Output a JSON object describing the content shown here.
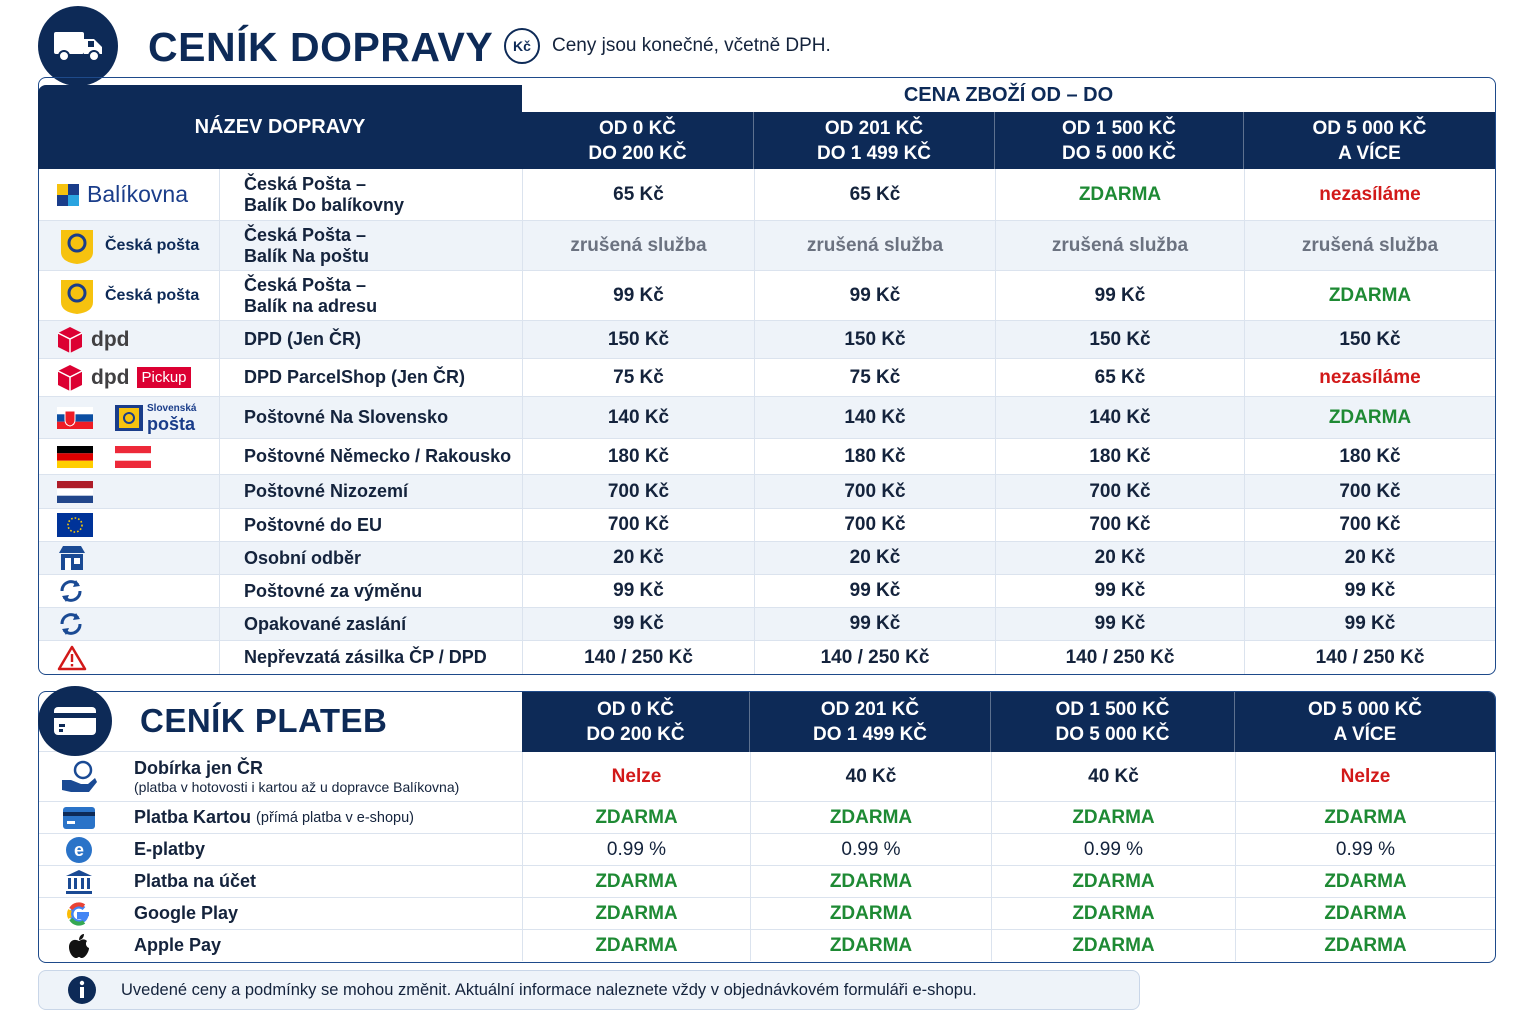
{
  "header": {
    "title": "CENÍK DOPRAVY",
    "currency_badge": "Kč",
    "note": "Ceny jsou konečné, včetně DPH."
  },
  "shipping": {
    "name_header": "NÁZEV DOPRAVY",
    "group_header": "CENA ZBOŽÍ OD – DO",
    "columns": [
      {
        "line1": "OD 0 KČ",
        "line2": "DO 200 KČ"
      },
      {
        "line1": "OD 201 KČ",
        "line2": "DO 1 499 KČ"
      },
      {
        "line1": "OD 1 500 KČ",
        "line2": "DO 5 000 KČ"
      },
      {
        "line1": "OD 5 000 KČ",
        "line2": "A VÍCE"
      }
    ],
    "logos": {
      "balikovna": "Balíkovna",
      "ceska_posta": "Česká pošta",
      "dpd": "dpd",
      "pickup": "Pickup",
      "slovenska_posta_1": "Slovenská",
      "slovenska_posta_2": "pošta"
    },
    "rows": [
      {
        "name1": "Česká Pošta –",
        "name2": "Balík Do balíkovny",
        "v": [
          "65 Kč",
          "65 Kč",
          "ZDARMA",
          "nezasíláme"
        ]
      },
      {
        "name1": "Česká Pošta –",
        "name2": "Balík Na poštu",
        "v": [
          "zrušená služba",
          "zrušená služba",
          "zrušená služba",
          "zrušená služba"
        ]
      },
      {
        "name1": "Česká Pošta –",
        "name2": "Balík na adresu",
        "v": [
          "99 Kč",
          "99 Kč",
          "99 Kč",
          "ZDARMA"
        ]
      },
      {
        "name1": "DPD (Jen ČR)",
        "v": [
          "150 Kč",
          "150 Kč",
          "150 Kč",
          "150 Kč"
        ]
      },
      {
        "name1": "DPD ParcelShop (Jen ČR)",
        "v": [
          "75 Kč",
          "75 Kč",
          "65 Kč",
          "nezasíláme"
        ]
      },
      {
        "name1": "Poštovné Na Slovensko",
        "v": [
          "140 Kč",
          "140 Kč",
          "140 Kč",
          "ZDARMA"
        ]
      },
      {
        "name1": "Poštovné Německo / Rakousko",
        "v": [
          "180 Kč",
          "180 Kč",
          "180 Kč",
          "180 Kč"
        ]
      },
      {
        "name1": "Poštovné Nizozemí",
        "v": [
          "700 Kč",
          "700 Kč",
          "700 Kč",
          "700 Kč"
        ]
      },
      {
        "name1": "Poštovné do EU",
        "v": [
          "700 Kč",
          "700 Kč",
          "700 Kč",
          "700 Kč"
        ]
      },
      {
        "name1": "Osobní odběr",
        "v": [
          "20 Kč",
          "20 Kč",
          "20 Kč",
          "20 Kč"
        ]
      },
      {
        "name1": "Poštovné za výměnu",
        "v": [
          "99 Kč",
          "99 Kč",
          "99 Kč",
          "99 Kč"
        ]
      },
      {
        "name1": "Opakované zaslání",
        "v": [
          "99 Kč",
          "99 Kč",
          "99 Kč",
          "99 Kč"
        ]
      },
      {
        "name1": "Nepřevzatá zásilka ČP / DPD",
        "v": [
          "140 / 250 Kč",
          "140 / 250 Kč",
          "140 / 250 Kč",
          "140 / 250 Kč"
        ]
      }
    ]
  },
  "payments": {
    "title": "CENÍK PLATEB",
    "columns": [
      {
        "line1": "OD 0 KČ",
        "line2": "DO 200 KČ"
      },
      {
        "line1": "OD 201 KČ",
        "line2": "DO 1 499 KČ"
      },
      {
        "line1": "OD 1 500 KČ",
        "line2": "DO 5 000 KČ"
      },
      {
        "line1": "OD 5 000 KČ",
        "line2": "A VÍCE"
      }
    ],
    "rows": [
      {
        "name": "Dobírka jen ČR",
        "sub": "(platba v hotovosti i kartou až u dopravce Balíkovna)",
        "v": [
          "Nelze",
          "40 Kč",
          "40 Kč",
          "Nelze"
        ]
      },
      {
        "name": "Platba Kartou",
        "sub_inline": "(přímá platba v e-shopu)",
        "v": [
          "ZDARMA",
          "ZDARMA",
          "ZDARMA",
          "ZDARMA"
        ]
      },
      {
        "name": "E-platby",
        "v": [
          "0.99 %",
          "0.99 %",
          "0.99 %",
          "0.99 %"
        ]
      },
      {
        "name": "Platba na účet",
        "v": [
          "ZDARMA",
          "ZDARMA",
          "ZDARMA",
          "ZDARMA"
        ]
      },
      {
        "name": "Google Play",
        "v": [
          "ZDARMA",
          "ZDARMA",
          "ZDARMA",
          "ZDARMA"
        ]
      },
      {
        "name": "Apple Pay",
        "v": [
          "ZDARMA",
          "ZDARMA",
          "ZDARMA",
          "ZDARMA"
        ]
      }
    ]
  },
  "footer_note": "Uvedené ceny a podmínky se mohou změnit. Aktuální informace naleznete vždy v objednávkovém formuláři e-shopu.",
  "colors": {
    "navy": "#0d2a57",
    "free": "#1e8a34",
    "red": "#d21919",
    "grey": "#6b7280"
  }
}
